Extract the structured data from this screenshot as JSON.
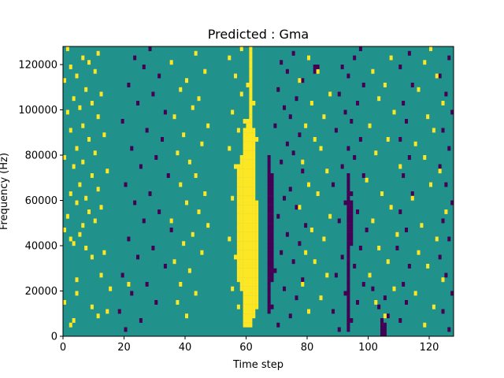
{
  "chart_data": {
    "type": "heatmap",
    "title": "Predicted : Gma",
    "xlabel": "Time step",
    "ylabel": "Frequency (Hz)",
    "xlim": [
      0,
      128
    ],
    "ylim": [
      0,
      128000
    ],
    "xticks": [
      0,
      20,
      40,
      60,
      80,
      100,
      120
    ],
    "yticks": [
      0,
      20000,
      40000,
      60000,
      80000,
      100000,
      120000
    ],
    "xtick_labels": [
      "0",
      "20",
      "40",
      "60",
      "80",
      "100",
      "120"
    ],
    "ytick_labels": [
      "0",
      "20000",
      "40000",
      "60000",
      "80000",
      "100000",
      "120000"
    ],
    "grid": false,
    "colors": {
      "background": "#21918c",
      "high": "#fde725",
      "low": "#440154"
    },
    "n_rows": 64,
    "n_cols": 128,
    "cells": {
      "high": [
        [
          2,
          2
        ],
        [
          3,
          3
        ],
        [
          4,
          11
        ],
        [
          5,
          14
        ],
        [
          6,
          9
        ],
        [
          7,
          0
        ],
        [
          9,
          4
        ],
        [
          10,
          15
        ],
        [
          11,
          21
        ],
        [
          12,
          4
        ],
        [
          13,
          12
        ],
        [
          17,
          9
        ],
        [
          18,
          13
        ],
        [
          19,
          7
        ],
        [
          20,
          3
        ],
        [
          21,
          2
        ],
        [
          22,
          5
        ],
        [
          23,
          0
        ],
        [
          24,
          6
        ],
        [
          25,
          10
        ],
        [
          26,
          1
        ],
        [
          27,
          8
        ],
        [
          28,
          12
        ],
        [
          29,
          4
        ],
        [
          30,
          7
        ],
        [
          31,
          2
        ],
        [
          32,
          11
        ],
        [
          33,
          5
        ],
        [
          35,
          9
        ],
        [
          36,
          14
        ],
        [
          37,
          3
        ],
        [
          38,
          6
        ],
        [
          39,
          0
        ],
        [
          40,
          10
        ],
        [
          41,
          4
        ],
        [
          43,
          8
        ],
        [
          44,
          13
        ],
        [
          45,
          2
        ],
        [
          46,
          6
        ],
        [
          48,
          11
        ],
        [
          49,
          1
        ],
        [
          50,
          5
        ],
        [
          51,
          9
        ],
        [
          52,
          3
        ],
        [
          53,
          12
        ],
        [
          54,
          7
        ],
        [
          56,
          0
        ],
        [
          57,
          4
        ],
        [
          58,
          10
        ],
        [
          59,
          2
        ],
        [
          60,
          8
        ],
        [
          61,
          6
        ],
        [
          62,
          11
        ],
        [
          63,
          1
        ],
        [
          4,
          40
        ],
        [
          7,
          37
        ],
        [
          9,
          43
        ],
        [
          11,
          38
        ],
        [
          14,
          41
        ],
        [
          16,
          36
        ],
        [
          18,
          45
        ],
        [
          20,
          39
        ],
        [
          22,
          42
        ],
        [
          24,
          47
        ],
        [
          25,
          35
        ],
        [
          27,
          44
        ],
        [
          29,
          40
        ],
        [
          31,
          46
        ],
        [
          33,
          38
        ],
        [
          35,
          43
        ],
        [
          38,
          41
        ],
        [
          40,
          37
        ],
        [
          42,
          45
        ],
        [
          44,
          39
        ],
        [
          46,
          47
        ],
        [
          48,
          36
        ],
        [
          50,
          42
        ],
        [
          52,
          44
        ],
        [
          54,
          38
        ],
        [
          56,
          40
        ],
        [
          58,
          46
        ],
        [
          60,
          35
        ],
        [
          62,
          43
        ],
        [
          3,
          60
        ],
        [
          6,
          57
        ],
        [
          8,
          62
        ],
        [
          10,
          55
        ],
        [
          12,
          58
        ],
        [
          15,
          61
        ],
        [
          17,
          56
        ],
        [
          19,
          63
        ],
        [
          21,
          54
        ],
        [
          23,
          59
        ],
        [
          26,
          62
        ],
        [
          28,
          57
        ],
        [
          30,
          55
        ],
        [
          32,
          60
        ],
        [
          34,
          58
        ],
        [
          37,
          56
        ],
        [
          39,
          61
        ],
        [
          41,
          54
        ],
        [
          43,
          63
        ],
        [
          45,
          57
        ],
        [
          47,
          59
        ],
        [
          49,
          55
        ],
        [
          51,
          62
        ],
        [
          53,
          58
        ],
        [
          55,
          60
        ],
        [
          57,
          56
        ],
        [
          59,
          61
        ],
        [
          61,
          54
        ],
        [
          63,
          58
        ],
        [
          5,
          80
        ],
        [
          8,
          84
        ],
        [
          11,
          78
        ],
        [
          13,
          86
        ],
        [
          16,
          82
        ],
        [
          18,
          79
        ],
        [
          21,
          85
        ],
        [
          23,
          81
        ],
        [
          26,
          87
        ],
        [
          28,
          77
        ],
        [
          31,
          83
        ],
        [
          33,
          80
        ],
        [
          36,
          86
        ],
        [
          38,
          78
        ],
        [
          41,
          84
        ],
        [
          43,
          82
        ],
        [
          46,
          79
        ],
        [
          48,
          85
        ],
        [
          51,
          81
        ],
        [
          53,
          87
        ],
        [
          56,
          77
        ],
        [
          58,
          83
        ],
        [
          61,
          80
        ],
        [
          4,
          105
        ],
        [
          7,
          102
        ],
        [
          10,
          108
        ],
        [
          13,
          100
        ],
        [
          16,
          106
        ],
        [
          19,
          103
        ],
        [
          22,
          109
        ],
        [
          25,
          101
        ],
        [
          28,
          107
        ],
        [
          31,
          104
        ],
        [
          34,
          99
        ],
        [
          37,
          110
        ],
        [
          40,
          102
        ],
        [
          43,
          106
        ],
        [
          46,
          100
        ],
        [
          49,
          108
        ],
        [
          52,
          103
        ],
        [
          55,
          105
        ],
        [
          58,
          101
        ],
        [
          61,
          107
        ],
        [
          2,
          118
        ],
        [
          6,
          121
        ],
        [
          9,
          115
        ],
        [
          12,
          124
        ],
        [
          15,
          119
        ],
        [
          18,
          116
        ],
        [
          21,
          122
        ],
        [
          24,
          117
        ],
        [
          27,
          125
        ],
        [
          30,
          114
        ],
        [
          33,
          120
        ],
        [
          36,
          123
        ],
        [
          39,
          118
        ],
        [
          42,
          115
        ],
        [
          45,
          121
        ],
        [
          48,
          119
        ],
        [
          51,
          124
        ],
        [
          54,
          116
        ],
        [
          57,
          122
        ],
        [
          60,
          118
        ],
        [
          63,
          120
        ]
      ],
      "high_columns": [
        {
          "col": 59,
          "rows": [
            2,
            46
          ]
        },
        {
          "col": 60,
          "rows": [
            2,
            48
          ]
        },
        {
          "col": 61,
          "rows": [
            2,
            50
          ]
        },
        {
          "col": 62,
          "rows": [
            4,
            46
          ]
        },
        {
          "col": 58,
          "rows": [
            10,
            40
          ]
        },
        {
          "col": 57,
          "rows": [
            12,
            38
          ]
        },
        {
          "col": 63,
          "rows": [
            6,
            30
          ]
        },
        {
          "col": 61,
          "rows": [
            50,
            64
          ]
        }
      ],
      "low": [
        [
          1,
          20
        ],
        [
          3,
          25
        ],
        [
          5,
          18
        ],
        [
          7,
          30
        ],
        [
          9,
          22
        ],
        [
          11,
          27
        ],
        [
          13,
          19
        ],
        [
          15,
          33
        ],
        [
          17,
          24
        ],
        [
          19,
          29
        ],
        [
          21,
          21
        ],
        [
          23,
          35
        ],
        [
          25,
          26
        ],
        [
          27,
          31
        ],
        [
          29,
          23
        ],
        [
          31,
          28
        ],
        [
          33,
          20
        ],
        [
          35,
          34
        ],
        [
          37,
          25
        ],
        [
          39,
          30
        ],
        [
          41,
          22
        ],
        [
          43,
          32
        ],
        [
          45,
          27
        ],
        [
          47,
          19
        ],
        [
          49,
          33
        ],
        [
          51,
          24
        ],
        [
          53,
          29
        ],
        [
          55,
          21
        ],
        [
          57,
          31
        ],
        [
          59,
          26
        ],
        [
          61,
          23
        ],
        [
          63,
          28
        ],
        [
          2,
          70
        ],
        [
          4,
          74
        ],
        [
          6,
          68
        ],
        [
          8,
          76
        ],
        [
          10,
          72
        ],
        [
          12,
          78
        ],
        [
          14,
          69
        ],
        [
          16,
          75
        ],
        [
          18,
          71
        ],
        [
          20,
          77
        ],
        [
          22,
          73
        ],
        [
          24,
          79
        ],
        [
          26,
          70
        ],
        [
          28,
          76
        ],
        [
          30,
          72
        ],
        [
          32,
          74
        ],
        [
          34,
          68
        ],
        [
          36,
          78
        ],
        [
          38,
          71
        ],
        [
          40,
          75
        ],
        [
          42,
          73
        ],
        [
          44,
          77
        ],
        [
          46,
          69
        ],
        [
          48,
          74
        ],
        [
          50,
          72
        ],
        [
          52,
          76
        ],
        [
          54,
          70
        ],
        [
          56,
          78
        ],
        [
          58,
          73
        ],
        [
          60,
          71
        ],
        [
          62,
          75
        ],
        [
          1,
          90
        ],
        [
          3,
          94
        ],
        [
          5,
          88
        ],
        [
          7,
          96
        ],
        [
          9,
          92
        ],
        [
          11,
          98
        ],
        [
          13,
          89
        ],
        [
          15,
          95
        ],
        [
          17,
          91
        ],
        [
          19,
          97
        ],
        [
          21,
          93
        ],
        [
          23,
          99
        ],
        [
          25,
          90
        ],
        [
          27,
          96
        ],
        [
          29,
          92
        ],
        [
          31,
          94
        ],
        [
          33,
          88
        ],
        [
          35,
          98
        ],
        [
          37,
          91
        ],
        [
          39,
          95
        ],
        [
          41,
          93
        ],
        [
          43,
          97
        ],
        [
          45,
          89
        ],
        [
          47,
          94
        ],
        [
          49,
          92
        ],
        [
          51,
          96
        ],
        [
          53,
          90
        ],
        [
          55,
          98
        ],
        [
          57,
          93
        ],
        [
          59,
          91
        ],
        [
          61,
          95
        ],
        [
          63,
          97
        ],
        [
          2,
          104
        ],
        [
          4,
          106
        ],
        [
          6,
          103
        ],
        [
          8,
          105
        ],
        [
          10,
          101
        ],
        [
          3,
          110
        ],
        [
          7,
          112
        ],
        [
          11,
          111
        ],
        [
          15,
          113
        ],
        [
          19,
          109
        ],
        [
          23,
          112
        ],
        [
          27,
          110
        ],
        [
          31,
          114
        ],
        [
          35,
          111
        ],
        [
          39,
          113
        ],
        [
          43,
          110
        ],
        [
          47,
          112
        ],
        [
          51,
          111
        ],
        [
          55,
          114
        ],
        [
          59,
          110
        ],
        [
          62,
          113
        ],
        [
          1,
          126
        ],
        [
          5,
          124
        ],
        [
          9,
          127
        ],
        [
          13,
          125
        ],
        [
          17,
          123
        ],
        [
          21,
          126
        ],
        [
          25,
          124
        ],
        [
          29,
          127
        ],
        [
          33,
          125
        ],
        [
          37,
          123
        ],
        [
          41,
          126
        ],
        [
          45,
          124
        ],
        [
          49,
          127
        ],
        [
          53,
          125
        ],
        [
          57,
          123
        ],
        [
          61,
          126
        ]
      ],
      "low_columns": [
        {
          "col": 67,
          "rows": [
            5,
            40
          ]
        },
        {
          "col": 68,
          "rows": [
            12,
            36
          ]
        },
        {
          "col": 93,
          "rows": [
            1,
            36
          ]
        },
        {
          "col": 94,
          "rows": [
            20,
            30
          ]
        },
        {
          "col": 104,
          "rows": [
            0,
            4
          ]
        },
        {
          "col": 105,
          "rows": [
            0,
            3
          ]
        },
        {
          "col": 82,
          "rows": [
            58,
            60
          ]
        },
        {
          "col": 83,
          "rows": [
            58,
            60
          ]
        }
      ]
    }
  }
}
